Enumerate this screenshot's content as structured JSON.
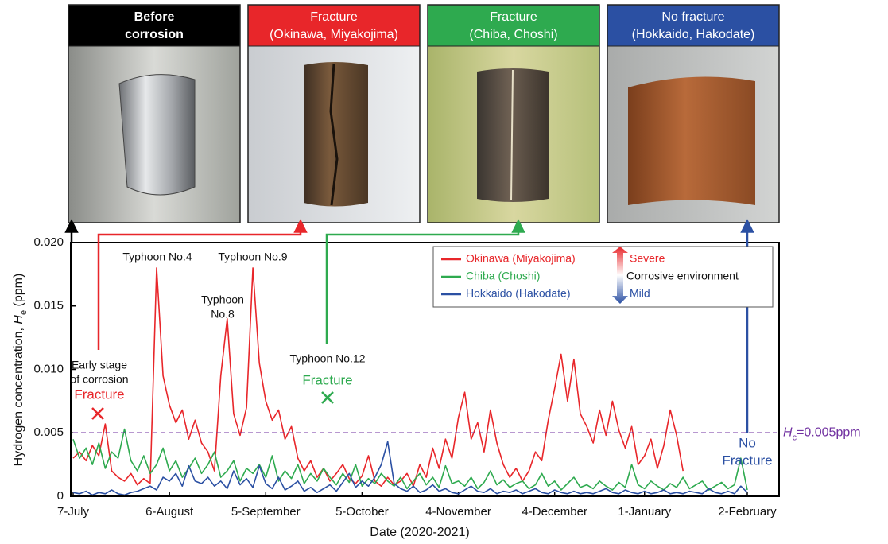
{
  "chart_data": {
    "type": "line",
    "panels": [
      {
        "lines": [
          "Before",
          "corrosion"
        ],
        "color": "#000000"
      },
      {
        "lines": [
          "Fracture",
          "(Okinawa, Miyakojima)"
        ],
        "color": "#e8262a"
      },
      {
        "lines": [
          "Fracture",
          "(Chiba, Choshi)"
        ],
        "color": "#2eaa4f"
      },
      {
        "lines": [
          "No fracture",
          "(Hokkaido, Hakodate)"
        ],
        "color": "#2b50a3"
      }
    ],
    "ylabel": {
      "text": "Hydrogen concentration, ",
      "symbol": "H",
      "subscript": "e",
      "unit": " (ppm)"
    },
    "xlabel": "Date (2020-2021)",
    "categories": [
      "7-July",
      null,
      null,
      null,
      null,
      null,
      null,
      null,
      null,
      null,
      null,
      null,
      null,
      null,
      null,
      "6-August",
      null,
      null,
      null,
      null,
      null,
      null,
      null,
      null,
      null,
      null,
      null,
      null,
      null,
      null,
      "5-September",
      null,
      null,
      null,
      null,
      null,
      null,
      null,
      null,
      null,
      null,
      null,
      null,
      null,
      null,
      "5-October",
      null,
      null,
      null,
      null,
      null,
      null,
      null,
      null,
      null,
      null,
      null,
      null,
      null,
      null,
      "4-November",
      null,
      null,
      null,
      null,
      null,
      null,
      null,
      null,
      null,
      null,
      null,
      null,
      null,
      null,
      "4-December",
      null,
      null,
      null,
      null,
      null,
      null,
      null,
      null,
      null,
      null,
      null,
      null,
      null,
      "1-January",
      null,
      null,
      null,
      null,
      null,
      null,
      null,
      null,
      null,
      null,
      null,
      null,
      null,
      null,
      null,
      "2-February"
    ],
    "ylim": [
      0,
      0.02
    ],
    "yticks": [
      0,
      0.005,
      {
        "value": 0.01,
        "label": "0.010"
      },
      0.015,
      {
        "value": 0.02,
        "label": "0.020"
      }
    ],
    "series": [
      {
        "name": "Okinawa (Miyakojima)",
        "color": "#e8262a",
        "values": [
          0.003,
          0.0035,
          0.0028,
          0.004,
          0.0032,
          0.0057,
          0.002,
          0.0015,
          0.0012,
          0.0018,
          0.0009,
          0.0014,
          0.001,
          0.018,
          0.0095,
          0.0072,
          0.0058,
          0.0068,
          0.0045,
          0.006,
          0.0042,
          0.0035,
          0.002,
          0.0095,
          0.014,
          0.0065,
          0.0048,
          0.007,
          0.018,
          0.0105,
          0.0075,
          0.006,
          0.0068,
          0.0045,
          0.0055,
          0.003,
          0.002,
          0.0028,
          0.0015,
          0.0022,
          0.0012,
          0.0018,
          0.0025,
          0.0014,
          0.001,
          0.0016,
          0.0032,
          0.0012,
          0.0008,
          0.0015,
          0.0009,
          0.0012,
          0.0018,
          0.0008,
          0.0025,
          0.0015,
          0.0038,
          0.0022,
          0.0045,
          0.003,
          0.0062,
          0.0082,
          0.0045,
          0.0058,
          0.0035,
          0.0068,
          0.0042,
          0.0025,
          0.0015,
          0.0022,
          0.0012,
          0.002,
          0.0035,
          0.0028,
          0.006,
          0.0085,
          0.0112,
          0.0075,
          0.0108,
          0.0065,
          0.0055,
          0.0042,
          0.0068,
          0.0048,
          0.0075,
          0.0052,
          0.0038,
          0.0055,
          0.0025,
          0.0032,
          0.0045,
          0.0022,
          0.004,
          0.0068,
          0.0048,
          0.002,
          null,
          null,
          null,
          null,
          null,
          null,
          null,
          null,
          null,
          null
        ]
      },
      {
        "name": "Chiba (Choshi)",
        "color": "#2eaa4f",
        "values": [
          0.0045,
          0.003,
          0.0038,
          0.0025,
          0.0042,
          0.0022,
          0.0035,
          0.003,
          0.0053,
          0.0028,
          0.002,
          0.0032,
          0.0018,
          0.0025,
          0.0038,
          0.002,
          0.0028,
          0.0015,
          0.0022,
          0.003,
          0.0018,
          0.0025,
          0.0035,
          0.0015,
          0.002,
          0.0028,
          0.0012,
          0.0022,
          0.0018,
          0.0025,
          0.0015,
          0.0032,
          0.0012,
          0.002,
          0.0014,
          0.0025,
          0.001,
          0.0018,
          0.0012,
          0.0022,
          0.0015,
          0.0009,
          0.0018,
          0.0011,
          0.0025,
          0.0008,
          0.0014,
          0.001,
          0.0018,
          0.0012,
          0.0008,
          0.0015,
          0.0006,
          0.0012,
          0.0018,
          0.0009,
          0.0015,
          0.0007,
          0.0024,
          0.001,
          0.0012,
          0.0008,
          0.0015,
          0.0006,
          0.0011,
          0.002,
          0.0009,
          0.0013,
          0.0007,
          0.001,
          0.0012,
          0.0006,
          0.0009,
          0.0018,
          0.0008,
          0.0012,
          0.0005,
          0.001,
          0.0015,
          0.0007,
          0.0009,
          0.0006,
          0.0012,
          0.0008,
          0.0005,
          0.0011,
          0.0007,
          0.0025,
          0.0009,
          0.0006,
          0.0012,
          0.0008,
          0.0005,
          0.001,
          0.0007,
          0.0015,
          0.0006,
          0.0009,
          0.0012,
          0.0005,
          0.0008,
          0.0011,
          0.0006,
          0.0009,
          0.003,
          0.0005
        ]
      },
      {
        "name": "Hokkaido (Hakodate)",
        "color": "#2b50a3",
        "values": [
          0.0003,
          0.0002,
          0.0004,
          0.0001,
          0.0003,
          0.0002,
          0.0005,
          0.0002,
          0.0001,
          0.0003,
          0.0004,
          0.0006,
          0.0008,
          0.0005,
          0.0015,
          0.0012,
          0.0018,
          0.0008,
          0.0024,
          0.0012,
          0.001,
          0.0015,
          0.0008,
          0.0012,
          0.0006,
          0.002,
          0.0009,
          0.0014,
          0.0007,
          0.0024,
          0.001,
          0.0006,
          0.0015,
          0.0005,
          0.0008,
          0.0012,
          0.0004,
          0.0007,
          0.0003,
          0.0006,
          0.0009,
          0.0004,
          0.0011,
          0.0018,
          0.0007,
          0.0012,
          0.0008,
          0.0015,
          0.0025,
          0.0043,
          0.001,
          0.0006,
          0.0004,
          0.0008,
          0.0003,
          0.0005,
          0.0009,
          0.0004,
          0.0006,
          0.0003,
          0.0002,
          0.0005,
          0.0008,
          0.0004,
          0.0003,
          0.0006,
          0.0002,
          0.0004,
          0.0003,
          0.0005,
          0.0002,
          0.0004,
          0.0006,
          0.0003,
          0.0002,
          0.0005,
          0.0003,
          0.0002,
          0.0004,
          0.0002,
          0.0003,
          0.0002,
          0.0004,
          0.0006,
          0.0003,
          0.0002,
          0.0005,
          0.0003,
          0.0002,
          0.0004,
          0.0002,
          0.0003,
          0.0005,
          0.0002,
          0.0003,
          0.0002,
          0.0004,
          0.0003,
          0.0002,
          0.0006,
          0.0003,
          0.0002,
          0.0004,
          0.0002,
          0.0008,
          0.0003
        ]
      }
    ],
    "threshold": {
      "value": 0.005,
      "color": "#7030a0",
      "symbol": "H",
      "subscript": "c",
      "text": "=0.005ppm"
    },
    "legend_scale": {
      "top": "Severe",
      "middle": "Corrosive environment",
      "bottom": "Mild"
    },
    "annotations": [
      {
        "lines": [
          "Typhoon No.4"
        ],
        "color": "#111111"
      },
      {
        "lines": [
          "Typhoon No.9"
        ],
        "color": "#111111"
      },
      {
        "lines": [
          "Typhoon",
          "No.8"
        ],
        "color": "#111111"
      },
      {
        "lines": [
          "Early stage",
          "of corrosion"
        ],
        "color": "#111111"
      },
      {
        "lines": [
          "Fracture"
        ],
        "color": "#e8262a"
      },
      {
        "lines": [
          "Typhoon No.12"
        ],
        "color": "#111111"
      },
      {
        "lines": [
          "Fracture"
        ],
        "color": "#2eaa4f"
      },
      {
        "lines": [
          "No",
          "Fracture"
        ],
        "color": "#2b50a3"
      }
    ]
  }
}
